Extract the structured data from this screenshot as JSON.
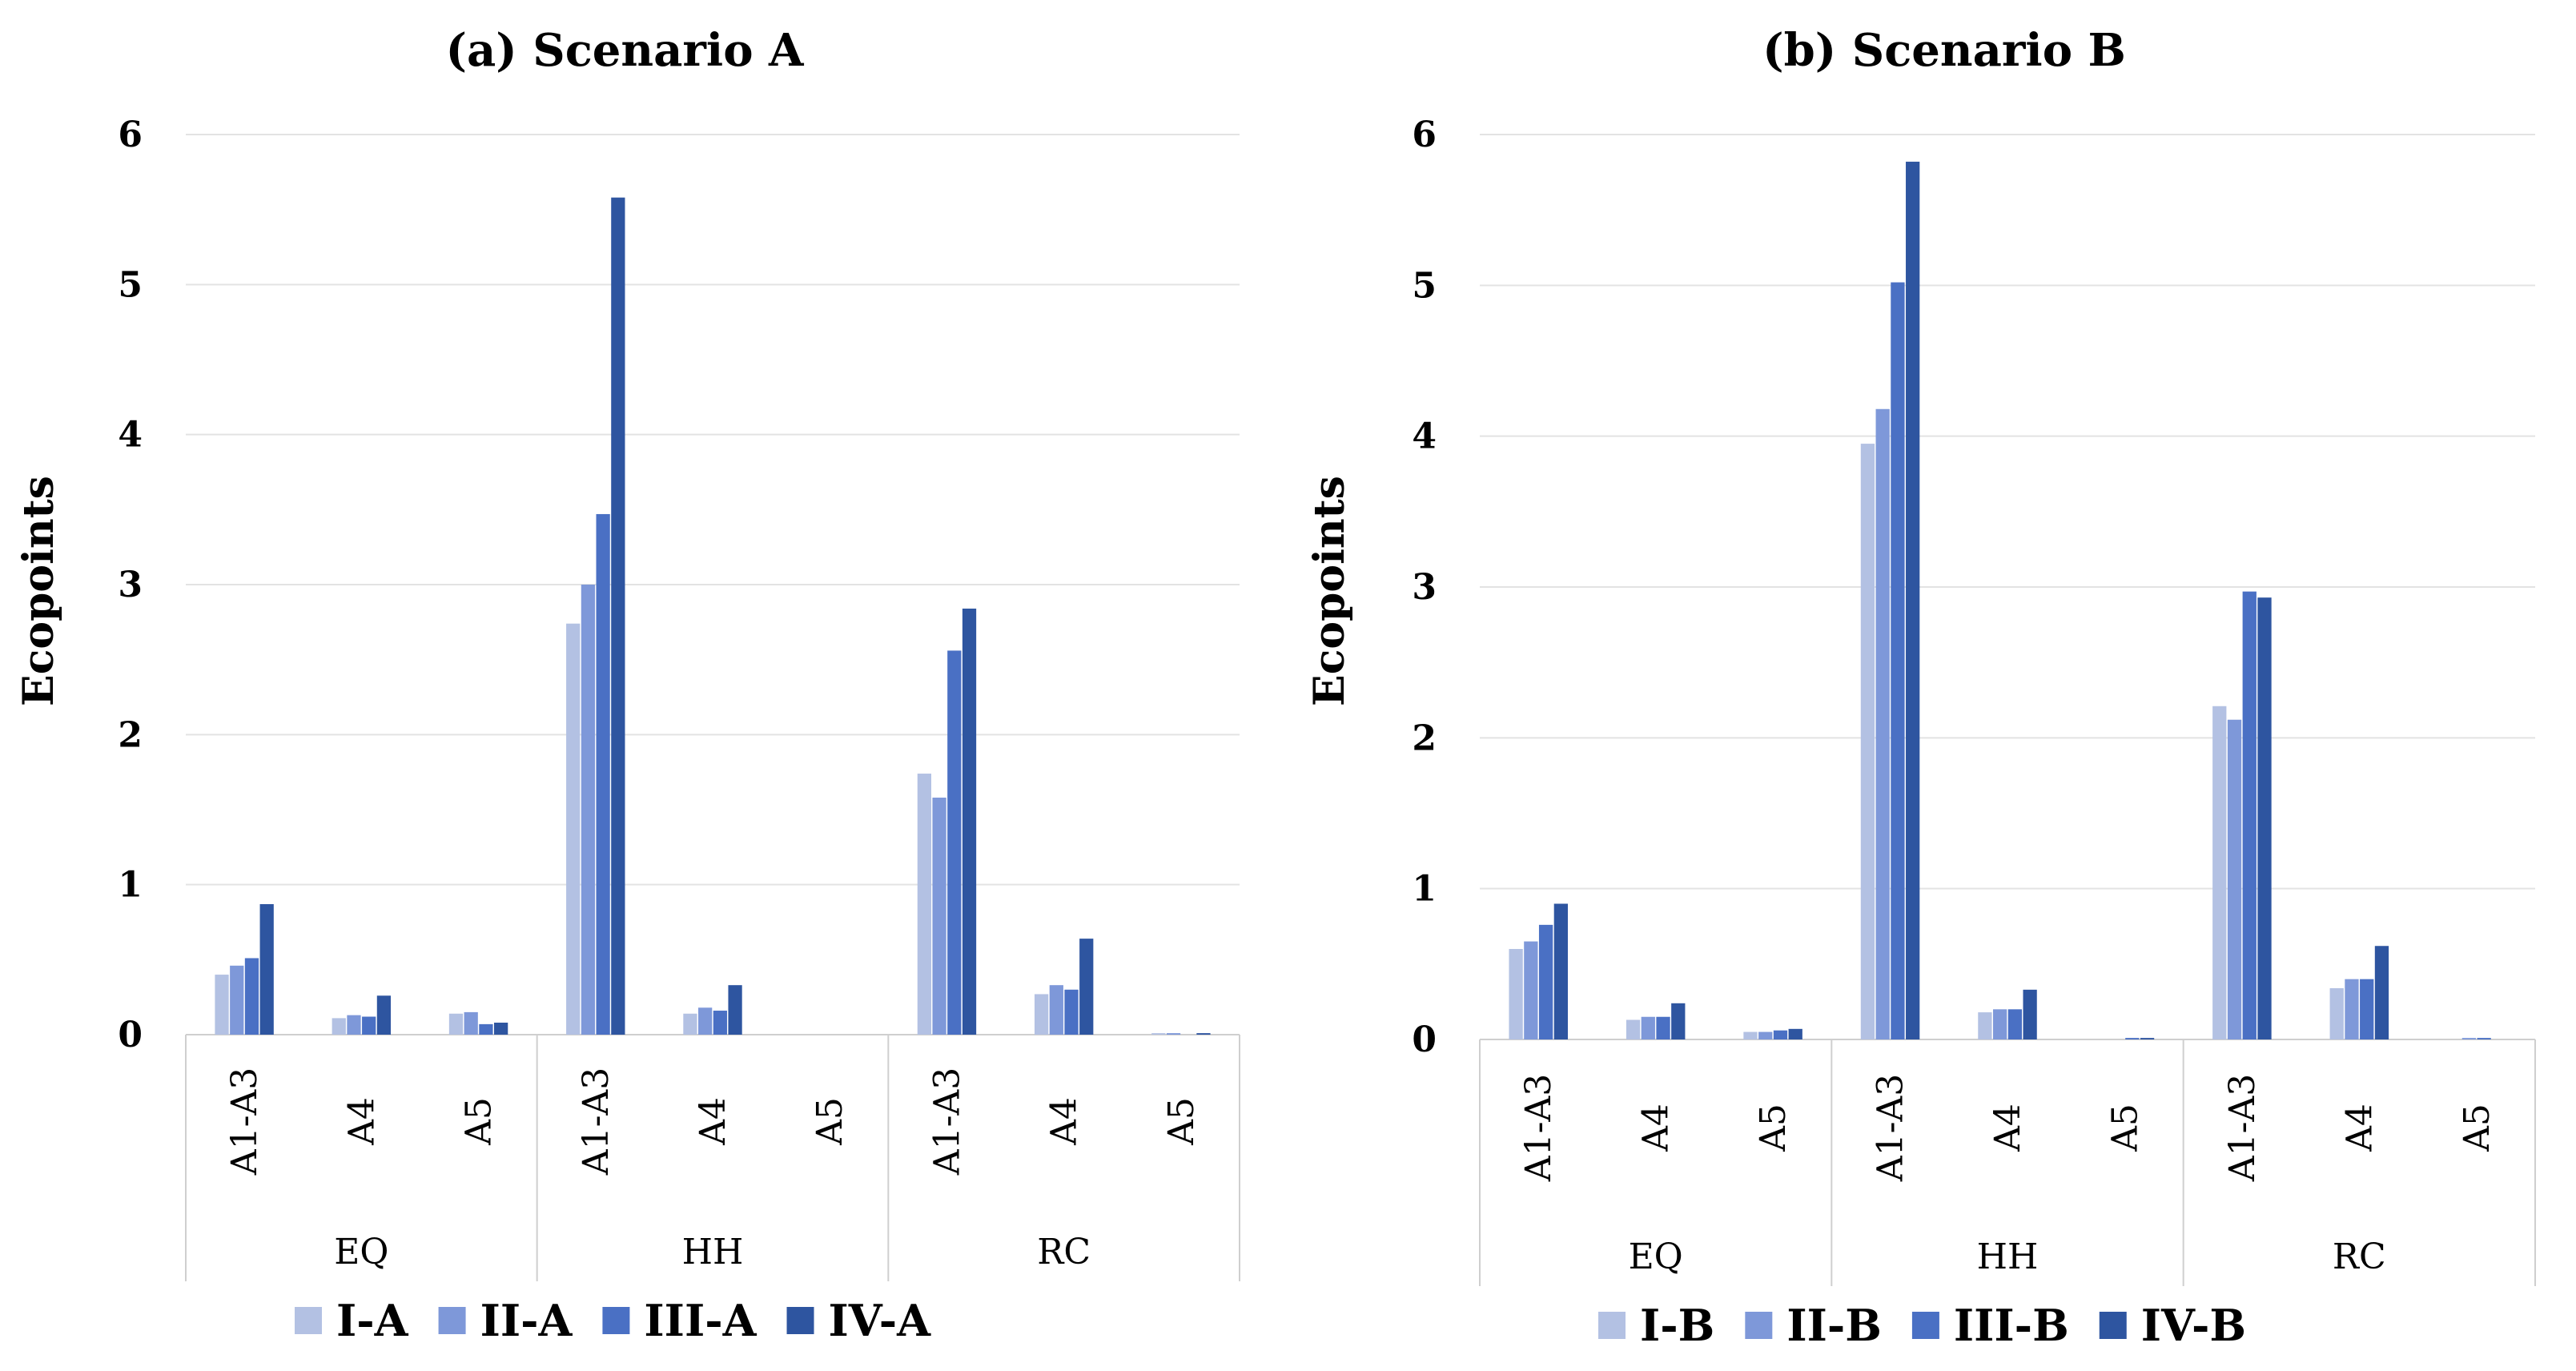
{
  "chart_data": [
    {
      "type": "bar",
      "title": "(a) Scenario A",
      "ylabel": "Ecopoints",
      "xlabel": "",
      "ylim": [
        0,
        6
      ],
      "yticks": [
        "0",
        "1",
        "2",
        "3",
        "4",
        "5",
        "6"
      ],
      "groups": [
        "EQ",
        "HH",
        "RC"
      ],
      "categories": [
        "A1-A3",
        "A4",
        "A5",
        "A1-A3",
        "A4",
        "A5",
        "A1-A3",
        "A4",
        "A5"
      ],
      "series": [
        {
          "name": "I-A",
          "color": "#b3c1e3",
          "values": [
            0.4,
            0.11,
            0.14,
            2.74,
            0.14,
            0.0,
            1.74,
            0.27,
            0.01
          ]
        },
        {
          "name": "II-A",
          "color": "#7e98d9",
          "values": [
            0.46,
            0.13,
            0.15,
            3.0,
            0.18,
            0.0,
            1.58,
            0.33,
            0.01
          ]
        },
        {
          "name": "III-A",
          "color": "#4a70c4",
          "values": [
            0.51,
            0.12,
            0.07,
            3.47,
            0.16,
            0.0,
            2.56,
            0.3,
            0.0
          ]
        },
        {
          "name": "IV-A",
          "color": "#2e55a0",
          "values": [
            0.87,
            0.26,
            0.08,
            5.58,
            0.33,
            0.0,
            2.84,
            0.64,
            0.01
          ]
        }
      ],
      "legend_position": "bottom"
    },
    {
      "type": "bar",
      "title": "(b) Scenario B",
      "ylabel": "Ecopoints",
      "xlabel": "",
      "ylim": [
        0,
        6
      ],
      "yticks": [
        "0",
        "1",
        "2",
        "3",
        "4",
        "5",
        "6"
      ],
      "groups": [
        "EQ",
        "HH",
        "RC"
      ],
      "categories": [
        "A1-A3",
        "A4",
        "A5",
        "A1-A3",
        "A4",
        "A5",
        "A1-A3",
        "A4",
        "A5"
      ],
      "series": [
        {
          "name": "I-B",
          "color": "#b3c1e3",
          "values": [
            0.6,
            0.13,
            0.05,
            3.95,
            0.18,
            0.0,
            2.21,
            0.34,
            0.0
          ]
        },
        {
          "name": "II-B",
          "color": "#7e98d9",
          "values": [
            0.65,
            0.15,
            0.05,
            4.18,
            0.2,
            0.0,
            2.12,
            0.4,
            0.01
          ]
        },
        {
          "name": "III-B",
          "color": "#4a70c4",
          "values": [
            0.76,
            0.15,
            0.06,
            5.02,
            0.2,
            0.01,
            2.97,
            0.4,
            0.01
          ]
        },
        {
          "name": "IV-B",
          "color": "#2e55a0",
          "values": [
            0.9,
            0.24,
            0.07,
            5.82,
            0.33,
            0.01,
            2.93,
            0.62,
            0.0
          ]
        }
      ],
      "legend_position": "bottom"
    }
  ]
}
